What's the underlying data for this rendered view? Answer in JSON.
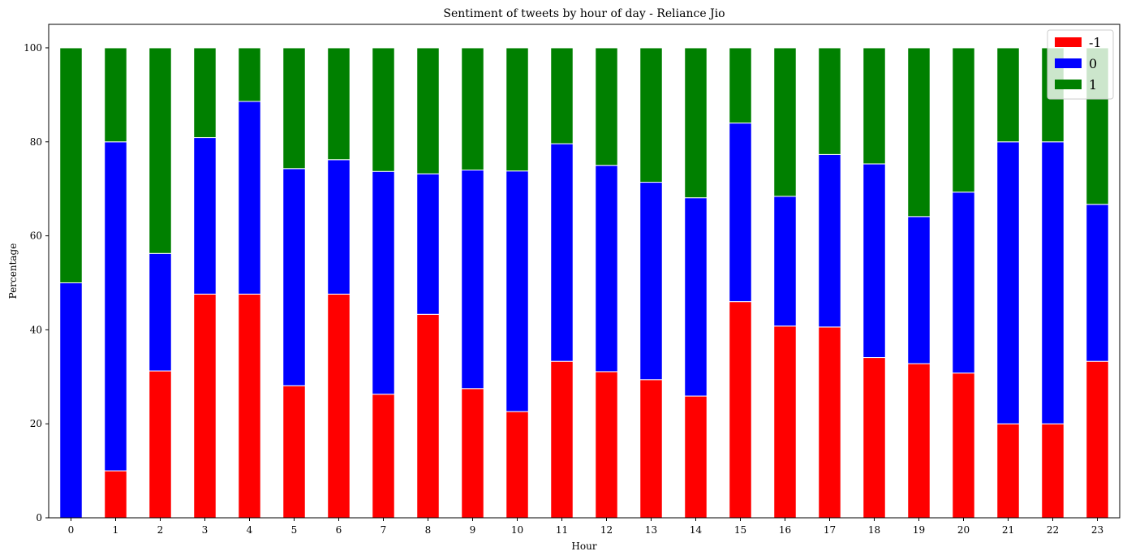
{
  "chart_data": {
    "type": "bar",
    "stacked": true,
    "title": "Sentiment of tweets by hour of day - Reliance Jio",
    "xlabel": "Hour",
    "ylabel": "Percentage",
    "categories": [
      "0",
      "1",
      "2",
      "3",
      "4",
      "5",
      "6",
      "7",
      "8",
      "9",
      "10",
      "11",
      "12",
      "13",
      "14",
      "15",
      "16",
      "17",
      "18",
      "19",
      "20",
      "21",
      "22",
      "23"
    ],
    "ylim": [
      0,
      105
    ],
    "yticks": [
      0,
      20,
      40,
      60,
      80,
      100
    ],
    "grid": false,
    "legend_position": "top-right",
    "series": [
      {
        "name": "-1",
        "color": "#ff0000",
        "values": [
          0,
          10.0,
          31.25,
          47.6,
          47.6,
          28.1,
          47.6,
          26.3,
          43.3,
          27.5,
          22.6,
          33.3,
          31.1,
          29.4,
          25.9,
          46.0,
          40.8,
          40.6,
          34.1,
          32.8,
          30.8,
          20.0,
          20.0,
          33.3
        ]
      },
      {
        "name": "0",
        "color": "#0000ff",
        "values": [
          50.0,
          70.0,
          25.0,
          33.3,
          41.0,
          46.2,
          28.6,
          47.4,
          29.9,
          46.5,
          51.2,
          46.3,
          43.9,
          42.0,
          42.2,
          38.0,
          27.6,
          36.7,
          41.2,
          31.3,
          38.5,
          60.0,
          60.0,
          33.4
        ]
      },
      {
        "name": "1",
        "color": "#008000",
        "values": [
          50.0,
          20.0,
          43.75,
          19.1,
          11.4,
          25.7,
          23.8,
          26.3,
          26.8,
          26.0,
          26.2,
          20.4,
          25.0,
          28.6,
          31.9,
          16.0,
          31.6,
          22.7,
          24.7,
          35.9,
          30.7,
          20.0,
          20.0,
          33.3
        ]
      }
    ]
  }
}
